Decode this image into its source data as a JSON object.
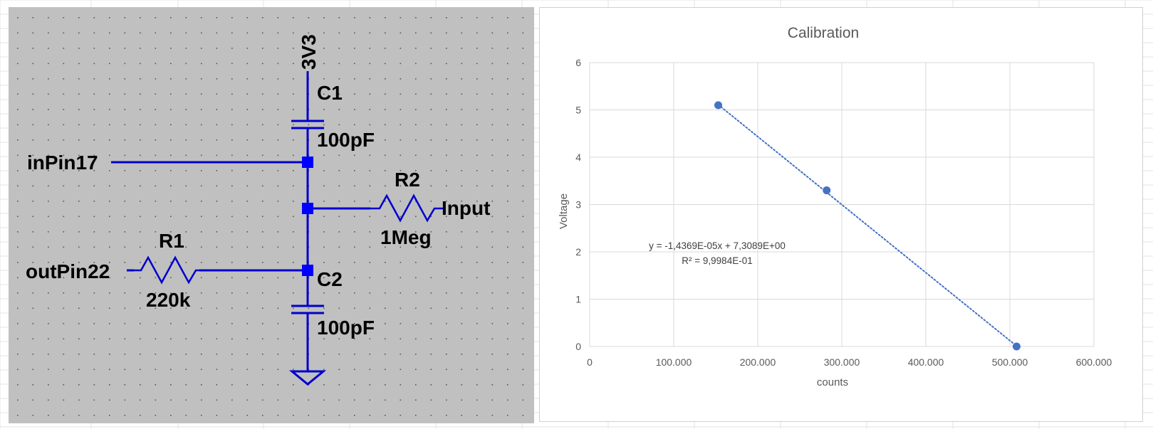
{
  "colors": {
    "schematic_background": "#c0c0c0",
    "wire": "#0000cc",
    "node": "#0000ff",
    "grid_dot": "#000000",
    "chart_marker": "#4472c4",
    "chart_gridline": "#d9d9d9",
    "chart_text": "#595959"
  },
  "schematic": {
    "supply_label": "3V3",
    "c1": {
      "name": "C1",
      "value": "100pF"
    },
    "c2": {
      "name": "C2",
      "value": "100pF"
    },
    "r1": {
      "name": "R1",
      "value": "220k"
    },
    "r2": {
      "name": "R2",
      "value": "1Meg"
    },
    "in_pin_label": "inPin17",
    "out_pin_label": "outPin22",
    "input_label": "Input",
    "ground_icon": "ground-symbol"
  },
  "chart_data": {
    "type": "scatter",
    "title": "Calibration",
    "xlabel": "counts",
    "ylabel": "Voltage",
    "xlim": [
      0,
      600000
    ],
    "ylim": [
      0,
      6
    ],
    "x_ticks": [
      0,
      100000,
      200000,
      300000,
      400000,
      500000,
      600000
    ],
    "x_tick_labels": [
      "0",
      "100.000",
      "200.000",
      "300.000",
      "400.000",
      "500.000",
      "600.000"
    ],
    "y_ticks": [
      0,
      1,
      2,
      3,
      4,
      5,
      6
    ],
    "y_tick_labels": [
      "0",
      "1",
      "2",
      "3",
      "4",
      "5",
      "6"
    ],
    "grid": true,
    "series": [
      {
        "x": [
          153000,
          282000,
          508000
        ],
        "y": [
          5.1,
          3.3,
          0.0
        ]
      }
    ],
    "trendline": {
      "type": "linear",
      "style": "dotted",
      "x_range": [
        153000,
        508000
      ],
      "equation": "y = -1,4369E-05x + 7,3089E+00",
      "r_squared": "R² = 9,9984E-01"
    }
  }
}
